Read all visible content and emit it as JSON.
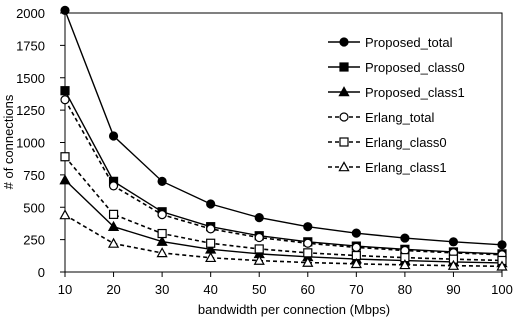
{
  "chart_data": {
    "type": "line",
    "title": "",
    "xlabel": "bandwidth per connection (Mbps)",
    "ylabel": "# of connections",
    "x": [
      10,
      20,
      30,
      40,
      50,
      60,
      70,
      80,
      90,
      100
    ],
    "xlim": [
      10,
      100
    ],
    "ylim": [
      0,
      2000
    ],
    "yticks": [
      0,
      250,
      500,
      750,
      1000,
      1250,
      1500,
      1750,
      2000
    ],
    "grid": false,
    "legend_position": "top-right",
    "series": [
      {
        "name": "Proposed_total",
        "marker": "circle",
        "filled": true,
        "dashed": false,
        "values": [
          2020,
          1050,
          700,
          525,
          420,
          350,
          300,
          262,
          233,
          210
        ]
      },
      {
        "name": "Proposed_class0",
        "marker": "square",
        "filled": true,
        "dashed": false,
        "values": [
          1400,
          700,
          465,
          350,
          280,
          233,
          200,
          175,
          155,
          140
        ]
      },
      {
        "name": "Proposed_class1",
        "marker": "triangle",
        "filled": true,
        "dashed": false,
        "values": [
          710,
          350,
          235,
          175,
          140,
          117,
          100,
          88,
          78,
          70
        ]
      },
      {
        "name": "Erlang_total",
        "marker": "circle",
        "filled": false,
        "dashed": true,
        "values": [
          1330,
          665,
          443,
          333,
          266,
          222,
          190,
          166,
          148,
          133
        ]
      },
      {
        "name": "Erlang_class0",
        "marker": "square",
        "filled": false,
        "dashed": true,
        "values": [
          890,
          445,
          297,
          222,
          178,
          148,
          127,
          111,
          99,
          89
        ]
      },
      {
        "name": "Erlang_class1",
        "marker": "triangle",
        "filled": false,
        "dashed": true,
        "values": [
          440,
          220,
          147,
          110,
          88,
          73,
          63,
          55,
          49,
          44
        ]
      }
    ]
  }
}
